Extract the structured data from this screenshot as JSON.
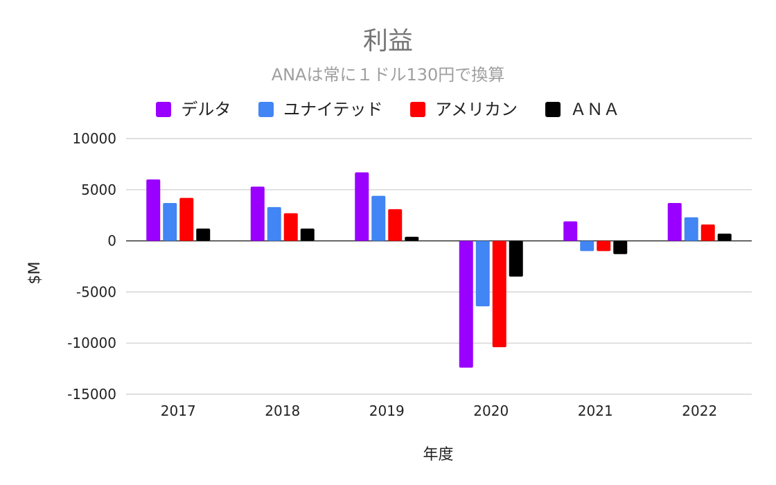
{
  "chart_data": {
    "type": "bar",
    "title": "利益",
    "subtitle": "ANAは常に１ドル130円で換算",
    "xlabel": "年度",
    "ylabel": "$M",
    "categories": [
      "2017",
      "2018",
      "2019",
      "2020",
      "2021",
      "2022"
    ],
    "ylim": [
      -15000,
      10000
    ],
    "yticks": [
      10000,
      5000,
      0,
      -5000,
      -10000,
      -15000
    ],
    "grid": true,
    "legend_position": "top",
    "series": [
      {
        "name": "デルタ",
        "color": "#9900ff",
        "values": [
          6000,
          5300,
          6700,
          -12400,
          1900,
          3700
        ]
      },
      {
        "name": "ユナイテッド",
        "color": "#4285f4",
        "values": [
          3700,
          3300,
          4400,
          -6400,
          -1000,
          2300
        ]
      },
      {
        "name": "アメリカン",
        "color": "#ff0000",
        "values": [
          4200,
          2700,
          3100,
          -10400,
          -1000,
          1600
        ]
      },
      {
        "name": "ＡＮＡ",
        "color": "#000000",
        "values": [
          1200,
          1200,
          400,
          -3500,
          -1300,
          700
        ]
      }
    ]
  }
}
